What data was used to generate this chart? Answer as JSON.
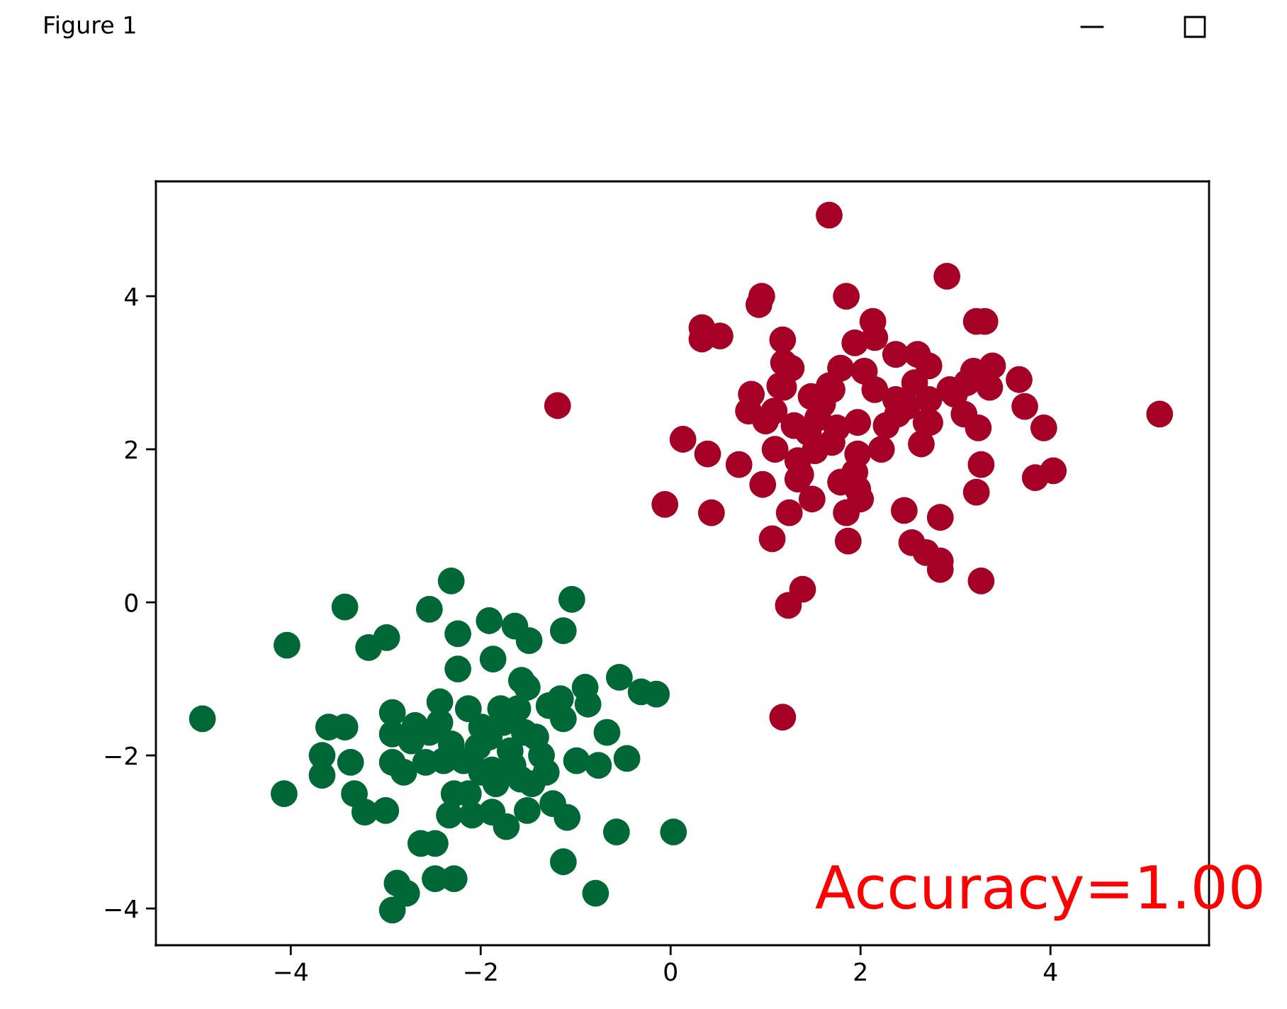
{
  "chart_data": {
    "type": "scatter",
    "title": "Figure 1",
    "marker": "circle",
    "xlim": [
      -5.42,
      5.67
    ],
    "ylim": [
      -4.48,
      5.5
    ],
    "xticks": [
      {
        "value": -4,
        "label": "−4"
      },
      {
        "value": -2,
        "label": "−2"
      },
      0,
      2,
      4
    ],
    "yticks": [
      {
        "value": -4,
        "label": "−4"
      },
      {
        "value": -2,
        "label": "−2"
      },
      0,
      2,
      4
    ],
    "annotations": [
      "Accuracy=1.00"
    ],
    "series": [
      {
        "color": "#a50026",
        "x": [
          1.67,
          2.91,
          0.96,
          0.93,
          1.85,
          0.33,
          0.52,
          0.33,
          2.13,
          1.18,
          1.19,
          1.27,
          1.15,
          0.85,
          0.82,
          1.1,
          1.94,
          2.15,
          2.37,
          2.6,
          2.72,
          1.79,
          1.7,
          1.6,
          1.55,
          2.04,
          2.15,
          2.37,
          2.39,
          2.69,
          2.64,
          2.72,
          2.94,
          1.97,
          2.22,
          0.13,
          0.39,
          0.72,
          0.97,
          1.34,
          1.37,
          1.52,
          1.7,
          1.75,
          1.45,
          1.94,
          1.97,
          1.85,
          2.0,
          1.87,
          1.25,
          1.49,
          -0.06,
          0.43,
          1.07,
          2.46,
          2.84,
          2.54,
          2.69,
          2.84,
          1.39,
          1.24,
          1.18,
          -1.19,
          3.22,
          3.31,
          3.39,
          3.19,
          2.99,
          3.36,
          3.67,
          3.73,
          3.93,
          2.73,
          3.24,
          3.27,
          3.22,
          3.84,
          4.03,
          5.15,
          3.27,
          3.12,
          3.09,
          2.49,
          1.09,
          1.0,
          1.34,
          1.19,
          1.67,
          1.3,
          1.79,
          2.84,
          2.57,
          2.27,
          1.48,
          1.97
        ],
        "values": [
          5.06,
          4.26,
          4.0,
          3.89,
          4.0,
          3.59,
          3.48,
          3.44,
          3.67,
          3.43,
          3.13,
          3.06,
          2.83,
          2.72,
          2.5,
          2.0,
          3.39,
          3.46,
          3.24,
          3.24,
          3.09,
          3.06,
          2.78,
          2.59,
          2.41,
          3.02,
          2.78,
          2.65,
          2.46,
          2.35,
          2.07,
          2.65,
          2.78,
          2.35,
          2.0,
          2.13,
          1.94,
          1.8,
          1.54,
          1.85,
          1.67,
          1.98,
          2.09,
          2.28,
          2.22,
          1.7,
          1.48,
          1.17,
          1.35,
          0.8,
          1.17,
          1.35,
          1.28,
          1.17,
          0.83,
          1.2,
          1.11,
          0.78,
          0.65,
          0.54,
          0.17,
          -0.04,
          -1.5,
          2.57,
          3.67,
          3.67,
          3.09,
          3.02,
          2.72,
          2.81,
          2.91,
          2.56,
          2.28,
          2.35,
          2.28,
          1.8,
          1.44,
          1.63,
          1.72,
          2.46,
          0.28,
          2.87,
          2.46,
          2.56,
          2.5,
          2.37,
          1.61,
          2.81,
          2.83,
          2.31,
          1.57,
          0.43,
          2.87,
          2.31,
          2.69,
          1.94
        ]
      },
      {
        "color": "#006837",
        "x": [
          -3.43,
          -4.04,
          -3.18,
          -2.99,
          -2.54,
          -2.31,
          -2.24,
          -2.24,
          -4.93,
          -2.43,
          -2.93,
          -2.69,
          -2.54,
          -2.93,
          -2.93,
          -2.58,
          -2.39,
          -2.73,
          -3.6,
          -3.43,
          -3.67,
          -3.67,
          -3.37,
          -4.07,
          -3.33,
          -3.22,
          -3.0,
          -2.33,
          -2.63,
          -2.48,
          -2.48,
          -2.28,
          -2.88,
          -2.78,
          -2.93,
          -1.04,
          -1.91,
          -1.64,
          -1.49,
          -1.13,
          -1.87,
          -1.57,
          -1.51,
          -1.79,
          -1.28,
          -1.16,
          -0.9,
          -0.87,
          -1.13,
          -0.54,
          -0.31,
          -0.15,
          -2.43,
          -1.99,
          -1.54,
          -2.03,
          -1.36,
          -0.67,
          -0.99,
          -0.76,
          -0.46,
          -2.18,
          -1.88,
          -1.58,
          -1.84,
          -1.46,
          -2.09,
          -1.88,
          -1.73,
          -1.51,
          -1.24,
          -1.09,
          -0.57,
          0.03,
          -1.13,
          -0.79,
          -2.13,
          -1.99,
          -1.69,
          -2.81,
          -1.76,
          -2.28,
          -1.61,
          -1.42,
          -1.91,
          -1.66,
          -1.31,
          -2.31,
          -2.13
        ],
        "values": [
          -0.06,
          -0.56,
          -0.59,
          -0.46,
          -0.09,
          0.28,
          -0.41,
          -0.87,
          -1.52,
          -1.3,
          -1.44,
          -1.61,
          -1.7,
          -1.72,
          -2.09,
          -2.09,
          -2.07,
          -1.81,
          -1.63,
          -1.63,
          -2.0,
          -2.26,
          -2.09,
          -2.5,
          -2.5,
          -2.74,
          -2.72,
          -2.78,
          -3.15,
          -3.15,
          -3.61,
          -3.61,
          -3.67,
          -3.8,
          -4.02,
          0.04,
          -0.24,
          -0.31,
          -0.5,
          -0.37,
          -0.74,
          -1.02,
          -1.11,
          -1.39,
          -1.35,
          -1.26,
          -1.11,
          -1.33,
          -1.52,
          -0.98,
          -1.17,
          -1.2,
          -1.57,
          -1.63,
          -1.7,
          -1.89,
          -2.0,
          -1.7,
          -2.07,
          -2.13,
          -2.04,
          -2.07,
          -2.19,
          -2.31,
          -2.37,
          -2.37,
          -2.78,
          -2.74,
          -2.93,
          -2.72,
          -2.63,
          -2.81,
          -3.0,
          -3.0,
          -3.39,
          -3.8,
          -2.5,
          -2.22,
          -1.94,
          -2.22,
          -1.57,
          -2.5,
          -1.39,
          -1.76,
          -1.76,
          -2.13,
          -2.22,
          -1.85,
          -1.39
        ]
      }
    ]
  }
}
